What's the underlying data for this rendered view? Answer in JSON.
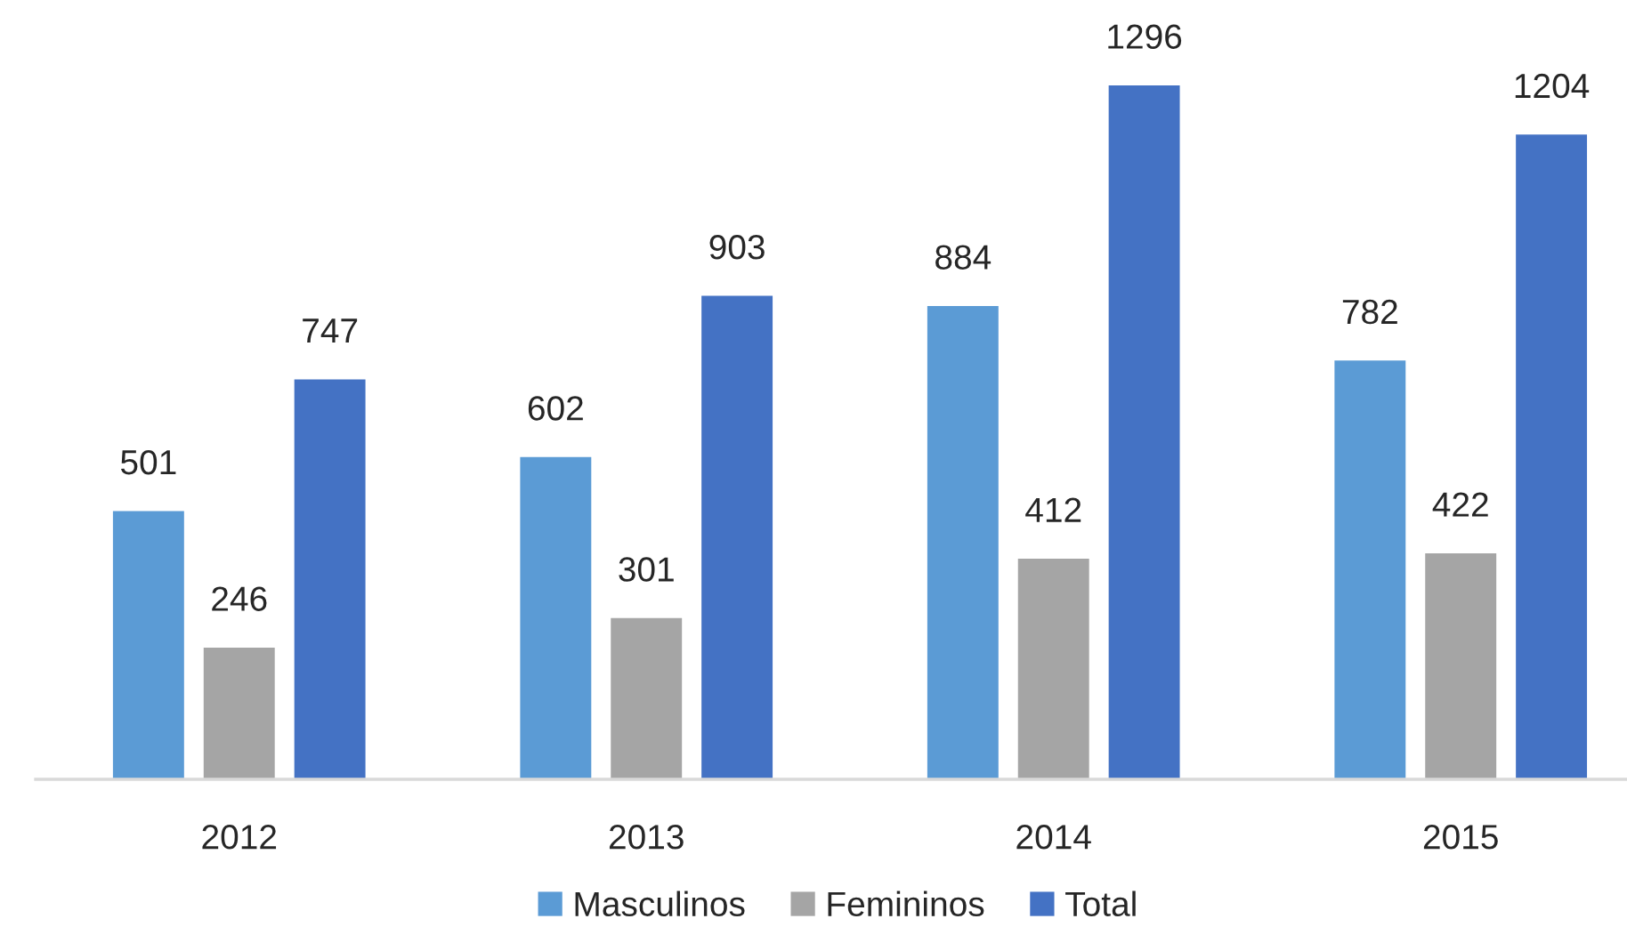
{
  "chart_data": {
    "type": "bar",
    "categories": [
      "2012",
      "2013",
      "2014",
      "2015"
    ],
    "series": [
      {
        "name": "Masculinos",
        "color": "#5b9bd5",
        "values": [
          501,
          602,
          884,
          782
        ]
      },
      {
        "name": "Femininos",
        "color": "#a5a5a5",
        "values": [
          246,
          301,
          412,
          422
        ]
      },
      {
        "name": "Total",
        "color": "#4472c4",
        "values": [
          747,
          903,
          1296,
          1204
        ]
      }
    ],
    "data_labels": true,
    "legend": "bottom",
    "tick_labels": "x"
  }
}
